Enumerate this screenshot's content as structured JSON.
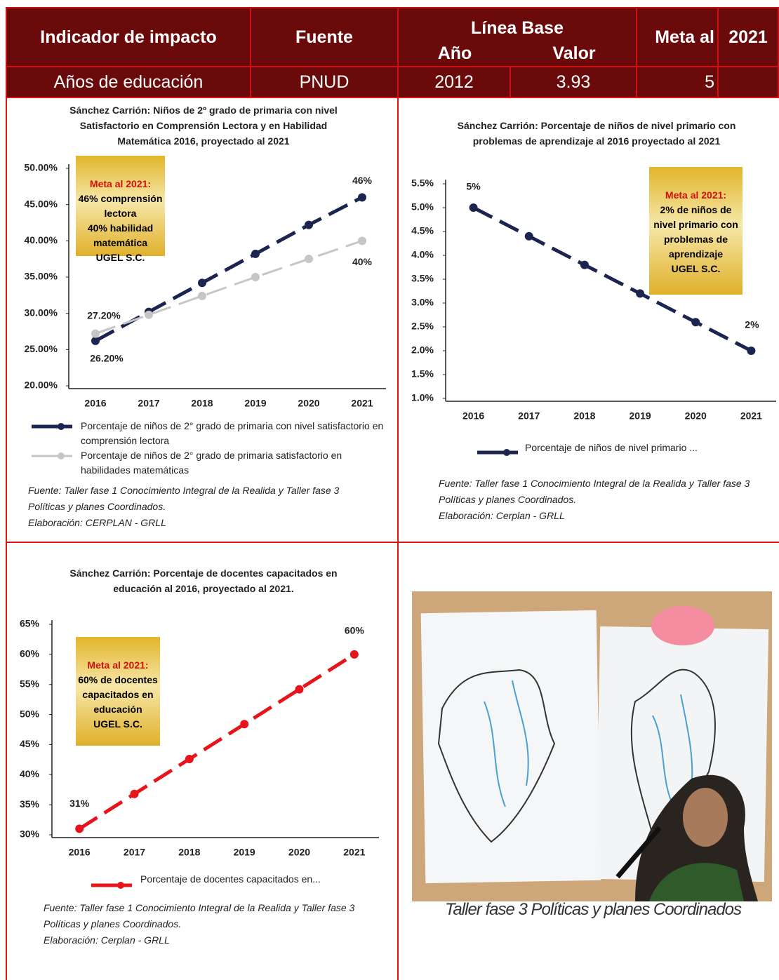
{
  "table": {
    "header": [
      "Indicador de impacto",
      "Fuente",
      "Línea Base",
      "Meta al",
      "2021"
    ],
    "subheader": [
      "Año",
      "Valor"
    ],
    "rows": [
      [
        "Años de educación",
        "PNUD",
        "2012",
        "3.93",
        "5"
      ]
    ]
  },
  "chart_data": [
    {
      "type": "line",
      "title": "Sánchez Carrión: Niños de 2º grado de primaria con nivel Satisfactorio en Comprensión Lectora y en Habilidad Matemática 2016, proyectado al 2021",
      "categories": [
        "2016",
        "2017",
        "2018",
        "2019",
        "2020",
        "2021"
      ],
      "series": [
        {
          "name": "Porcentaje de niños de 2° grado de primaria con nivel satisfactorio en comprensión lectora",
          "color": "#1b2550",
          "values": [
            26.2,
            30.2,
            34.2,
            38.2,
            42.2,
            46
          ],
          "value_labels": [
            "26.20%",
            null,
            null,
            null,
            null,
            "46%"
          ]
        },
        {
          "name": "Porcentaje de niños de 2° grado de primaria satisfactorio en habilidades matemáticas",
          "color": "#c6c6c6",
          "values": [
            27.2,
            29.8,
            32.4,
            35,
            37.5,
            40
          ],
          "value_labels": [
            "27.20%",
            null,
            null,
            null,
            null,
            "40%"
          ]
        }
      ],
      "ylim": [
        20,
        50
      ],
      "yticks": [
        {
          "value": 20,
          "label": "20.00%"
        },
        {
          "value": 25,
          "label": "25.00%"
        },
        {
          "value": 30,
          "label": "30.00%"
        },
        {
          "value": 35,
          "label": "35.00%"
        },
        {
          "value": 40,
          "label": "40.00%"
        },
        {
          "value": 45,
          "label": "45.00%"
        },
        {
          "value": 50,
          "label": "50.00%"
        }
      ],
      "annotation": {
        "title": "Meta al 2021:",
        "lines": [
          "46% comprensión lectora",
          "40% habilidad matemática",
          "UGEL S.C."
        ]
      },
      "source": [
        "Fuente: Taller fase 1 Conocimiento Integral de la Realida y Taller fase 3 Políticas y planes Coordinados.",
        "Elaboración: CERPLAN - GRLL"
      ]
    },
    {
      "type": "line",
      "title": "Sánchez Carrión: Porcentaje de niños de nivel primario con problemas de aprendizaje al 2016 proyectado al 2021",
      "categories": [
        "2016",
        "2017",
        "2018",
        "2019",
        "2020",
        "2021"
      ],
      "series": [
        {
          "name": "Porcentaje de niños de nivel primario ...",
          "color": "#1b2550",
          "values": [
            5,
            4.4,
            3.8,
            3.2,
            2.6,
            2
          ],
          "value_labels": [
            "5%",
            null,
            null,
            null,
            null,
            "2%"
          ]
        }
      ],
      "ylim": [
        1,
        5.5
      ],
      "yticks": [
        {
          "value": 1,
          "label": "1.0%"
        },
        {
          "value": 1.5,
          "label": "1.5%"
        },
        {
          "value": 2,
          "label": "2.0%"
        },
        {
          "value": 2.5,
          "label": "2.5%"
        },
        {
          "value": 3,
          "label": "3.0%"
        },
        {
          "value": 3.5,
          "label": "3.5%"
        },
        {
          "value": 4,
          "label": "4.0%"
        },
        {
          "value": 4.5,
          "label": "4.5%"
        },
        {
          "value": 5,
          "label": "5.0%"
        },
        {
          "value": 5.5,
          "label": "5.5%"
        }
      ],
      "annotation": {
        "title": "Meta al 2021:",
        "lines": [
          "2% de niños de nivel primario con problemas de aprendizaje",
          "UGEL S.C."
        ]
      },
      "source": [
        "Fuente: Taller fase 1 Conocimiento Integral de la Realida y Taller fase 3 Políticas y planes Coordinados.",
        "Elaboración: Cerplan - GRLL"
      ]
    },
    {
      "type": "line",
      "title": "Sánchez Carrión: Porcentaje de docentes capacitados en educación al 2016, proyectado al 2021.",
      "categories": [
        "2016",
        "2017",
        "2018",
        "2019",
        "2020",
        "2021"
      ],
      "series": [
        {
          "name": "Porcentaje de docentes capacitados en...",
          "color": "#e8141b",
          "values": [
            31,
            36.8,
            42.6,
            48.4,
            54.2,
            60
          ],
          "value_labels": [
            "31%",
            null,
            null,
            null,
            null,
            "60%"
          ]
        }
      ],
      "ylim": [
        30,
        65
      ],
      "yticks": [
        {
          "value": 30,
          "label": "30%"
        },
        {
          "value": 35,
          "label": "35%"
        },
        {
          "value": 40,
          "label": "40%"
        },
        {
          "value": 45,
          "label": "45%"
        },
        {
          "value": 50,
          "label": "50%"
        },
        {
          "value": 55,
          "label": "55%"
        },
        {
          "value": 60,
          "label": "60%"
        },
        {
          "value": 65,
          "label": "65%"
        }
      ],
      "annotation": {
        "title": "Meta al 2021:",
        "lines": [
          "60% de docentes capacitados en educación",
          "UGEL S.C."
        ]
      },
      "source": [
        "Fuente: Taller fase 1 Conocimiento Integral de la Realida y Taller fase 3 Políticas y planes Coordinados.",
        "Elaboración: Cerplan - GRLL"
      ]
    }
  ],
  "photo": {
    "caption": "Taller fase 3 Políticas y planes Coordinados"
  }
}
